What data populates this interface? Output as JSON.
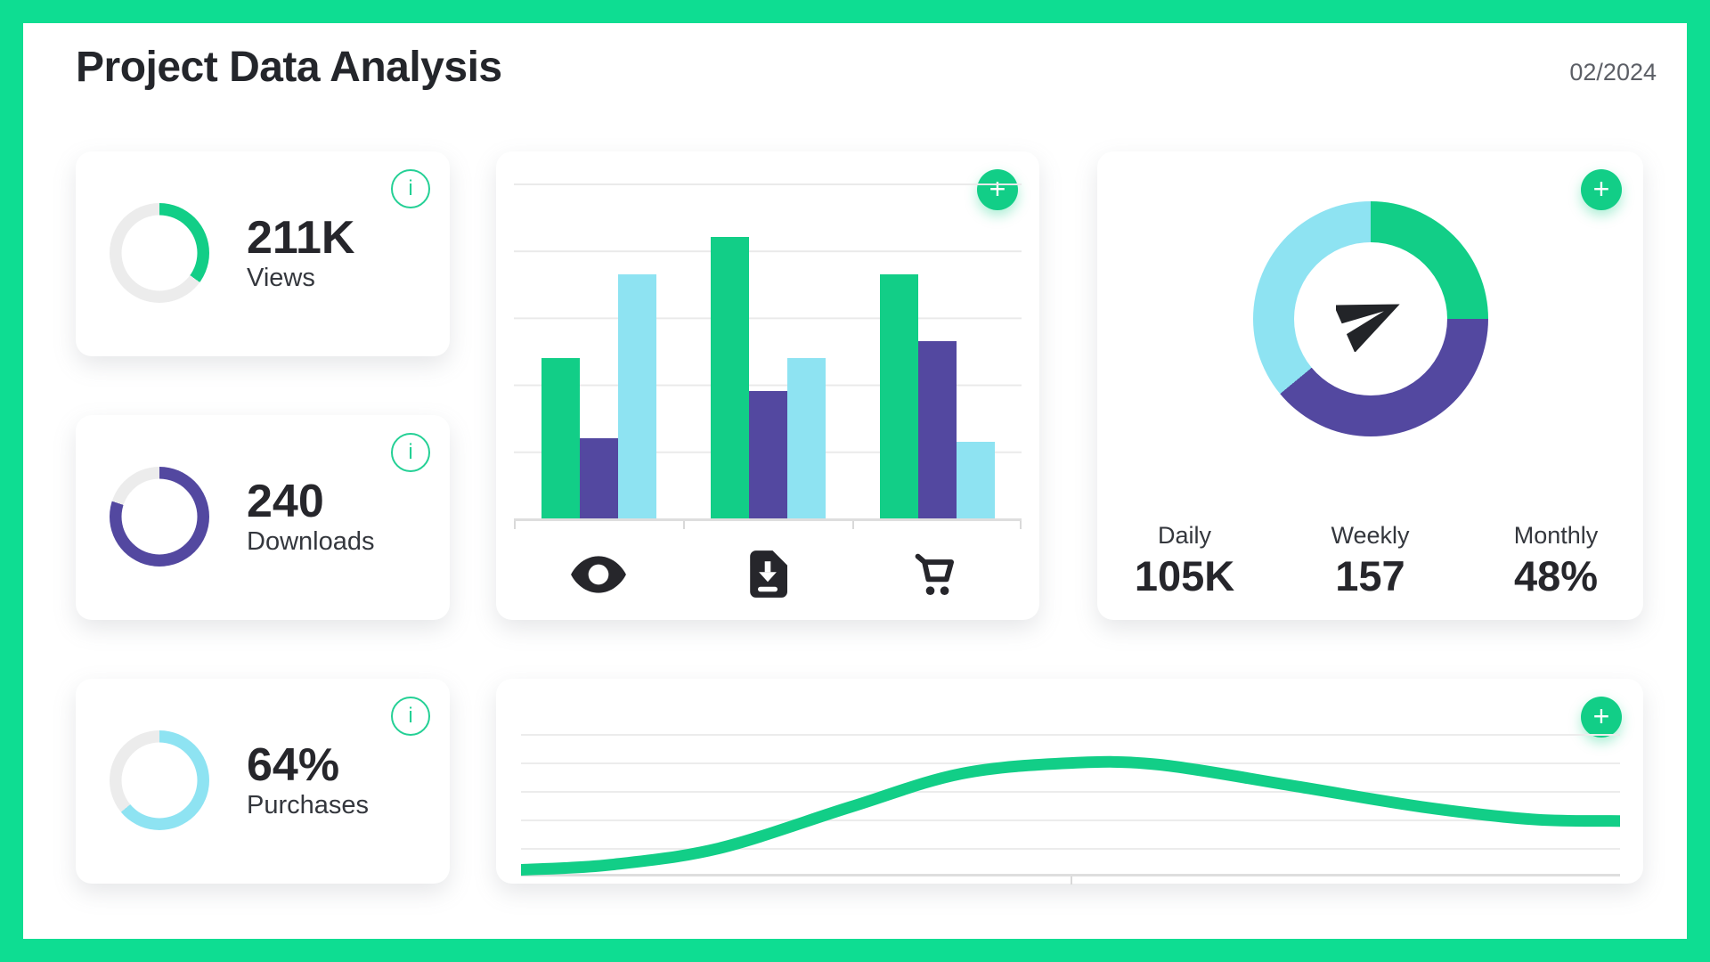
{
  "header": {
    "title": "Project Data Analysis",
    "date": "02/2024"
  },
  "colors": {
    "frame_green": "#0edd92",
    "accent_green": "#12ce87",
    "purple": "#5348a0",
    "cyan": "#8ee3f2",
    "donut_track": "#ececec",
    "ink": "#26262b",
    "grid_line": "#eaeaea",
    "axis_line": "#dedede"
  },
  "stat_cards": [
    {
      "value": "211K",
      "label": "Views",
      "percent": 35,
      "color": "#12ce87",
      "info_label": "i"
    },
    {
      "value": "240",
      "label": "Downloads",
      "percent": 80,
      "color": "#5348a0",
      "info_label": "i"
    },
    {
      "value": "64%",
      "label": "Purchases",
      "percent": 64,
      "color": "#8ee3f2",
      "info_label": "i"
    }
  ],
  "bar_card": {
    "add_label": "+",
    "icons": [
      "eye-icon",
      "download-icon",
      "cart-icon"
    ]
  },
  "donut_card": {
    "add_label": "+",
    "stats": [
      {
        "label": "Daily",
        "value": "105K"
      },
      {
        "label": "Weekly",
        "value": "157"
      },
      {
        "label": "Monthly",
        "value": "48%"
      }
    ]
  },
  "line_card": {
    "add_label": "+"
  },
  "chart_data": [
    {
      "type": "bar",
      "categories": [
        "Views",
        "Downloads",
        "Purchases"
      ],
      "series": [
        {
          "name": "green",
          "color": "#12ce87",
          "values": [
            48,
            84,
            73
          ]
        },
        {
          "name": "purple",
          "color": "#5348a0",
          "values": [
            24,
            38,
            53
          ]
        },
        {
          "name": "cyan",
          "color": "#8ee3f2",
          "values": [
            73,
            48,
            23
          ]
        }
      ],
      "ylim": [
        0,
        100
      ],
      "grid": true,
      "legend": false,
      "x_axis_icons": [
        "eye",
        "download",
        "cart"
      ]
    },
    {
      "type": "pie",
      "donut": true,
      "labels": [
        "green",
        "purple",
        "cyan"
      ],
      "values": [
        25,
        39,
        36
      ],
      "colors": [
        "#12ce87",
        "#5348a0",
        "#8ee3f2"
      ],
      "center_icon": "paper-plane"
    },
    {
      "type": "line",
      "color": "#12ce87",
      "points": [
        [
          0.0,
          0.04
        ],
        [
          0.08,
          0.07
        ],
        [
          0.18,
          0.17
        ],
        [
          0.3,
          0.42
        ],
        [
          0.4,
          0.62
        ],
        [
          0.5,
          0.685
        ],
        [
          0.58,
          0.675
        ],
        [
          0.7,
          0.55
        ],
        [
          0.82,
          0.42
        ],
        [
          0.92,
          0.345
        ],
        [
          1.0,
          0.335
        ]
      ],
      "y_scale": "0 = bottom axis, 1 = plot top",
      "grid": true
    }
  ]
}
